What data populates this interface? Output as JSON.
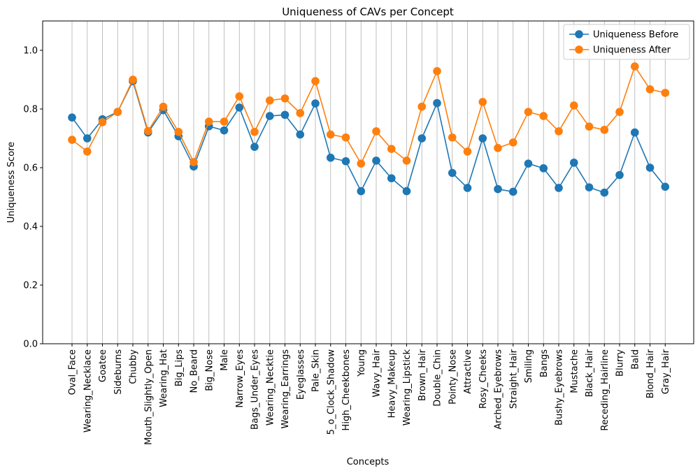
{
  "chart_data": {
    "type": "line",
    "title": "Uniqueness of CAVs per Concept",
    "xlabel": "Concepts",
    "ylabel": "Uniqueness Score",
    "ylim": [
      0.0,
      1.1
    ],
    "yticks": [
      "0.0",
      "0.2",
      "0.4",
      "0.6",
      "0.8",
      "1.0"
    ],
    "grid": "vertical",
    "legend_position": "top-right",
    "categories": [
      "Oval_Face",
      "Wearing_Necklace",
      "Goatee",
      "Sideburns",
      "Chubby",
      "Mouth_Slightly_Open",
      "Wearing_Hat",
      "Big_Lips",
      "No_Beard",
      "Big_Nose",
      "Male",
      "Narrow_Eyes",
      "Bags_Under_Eyes",
      "Wearing_Necktie",
      "Wearing_Earrings",
      "Eyeglasses",
      "Pale_Skin",
      "5_o_Clock_Shadow",
      "High_Cheekbones",
      "Young",
      "Wavy_Hair",
      "Heavy_Makeup",
      "Wearing_Lipstick",
      "Brown_Hair",
      "Double_Chin",
      "Pointy_Nose",
      "Attractive",
      "Rosy_Cheeks",
      "Arched_Eyebrows",
      "Straight_Hair",
      "Smiling",
      "Bangs",
      "Bushy_Eyebrows",
      "Mustache",
      "Black_Hair",
      "Receding_Hairline",
      "Blurry",
      "Bald",
      "Blond_Hair",
      "Gray_Hair"
    ],
    "series": [
      {
        "name": "Uniqueness Before",
        "color": "#1f77b4",
        "values": [
          0.771,
          0.7,
          0.765,
          0.79,
          0.895,
          0.72,
          0.796,
          0.707,
          0.604,
          0.741,
          0.727,
          0.805,
          0.671,
          0.776,
          0.78,
          0.713,
          0.819,
          0.634,
          0.622,
          0.52,
          0.624,
          0.564,
          0.52,
          0.7,
          0.82,
          0.582,
          0.531,
          0.7,
          0.527,
          0.518,
          0.614,
          0.598,
          0.531,
          0.617,
          0.533,
          0.515,
          0.575,
          0.72,
          0.6,
          0.535
        ]
      },
      {
        "name": "Uniqueness After",
        "color": "#ff7f0e",
        "values": [
          0.695,
          0.655,
          0.755,
          0.79,
          0.9,
          0.725,
          0.808,
          0.722,
          0.619,
          0.757,
          0.757,
          0.843,
          0.722,
          0.829,
          0.836,
          0.786,
          0.895,
          0.713,
          0.703,
          0.614,
          0.724,
          0.664,
          0.624,
          0.808,
          0.929,
          0.703,
          0.655,
          0.824,
          0.667,
          0.686,
          0.79,
          0.776,
          0.724,
          0.812,
          0.74,
          0.729,
          0.79,
          0.945,
          0.867,
          0.855
        ]
      }
    ]
  }
}
